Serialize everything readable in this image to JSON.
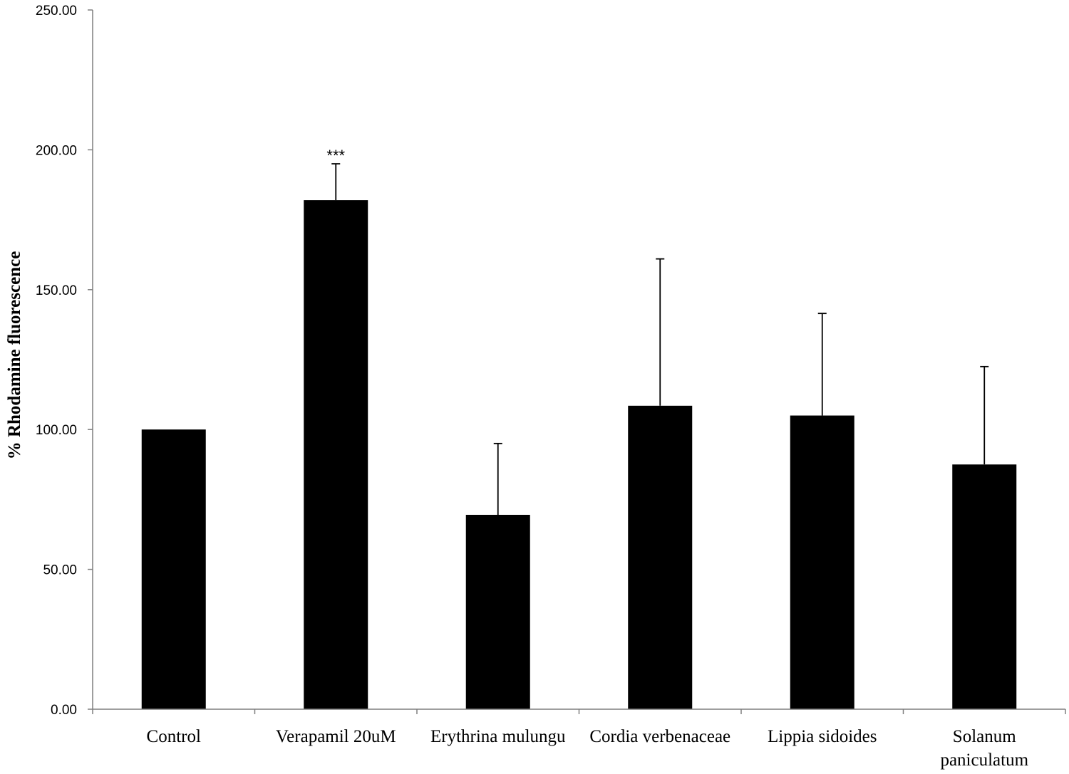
{
  "chart_data": {
    "type": "bar",
    "title": "",
    "xlabel": "",
    "ylabel": "% Rhodamine fluorescence",
    "ylim": [
      0,
      250
    ],
    "yticks": [
      "0.00",
      "50.00",
      "100.00",
      "150.00",
      "200.00",
      "250.00"
    ],
    "grid": false,
    "categories": [
      [
        "Control"
      ],
      [
        "Verapamil 20uM"
      ],
      [
        "Erythrina mulungu"
      ],
      [
        "Cordia verbenaceae"
      ],
      [
        "Lippia sidoides"
      ],
      [
        "Solanum",
        "paniculatum"
      ]
    ],
    "values": [
      100,
      182,
      69.5,
      108.5,
      105,
      87.5
    ],
    "error_upper": [
      100,
      195,
      95,
      161,
      141.5,
      122.5
    ],
    "annotations": [
      "",
      "***",
      "",
      "",
      "",
      ""
    ],
    "bar_color": "#000000",
    "axis_color": "#7f7f7f"
  }
}
